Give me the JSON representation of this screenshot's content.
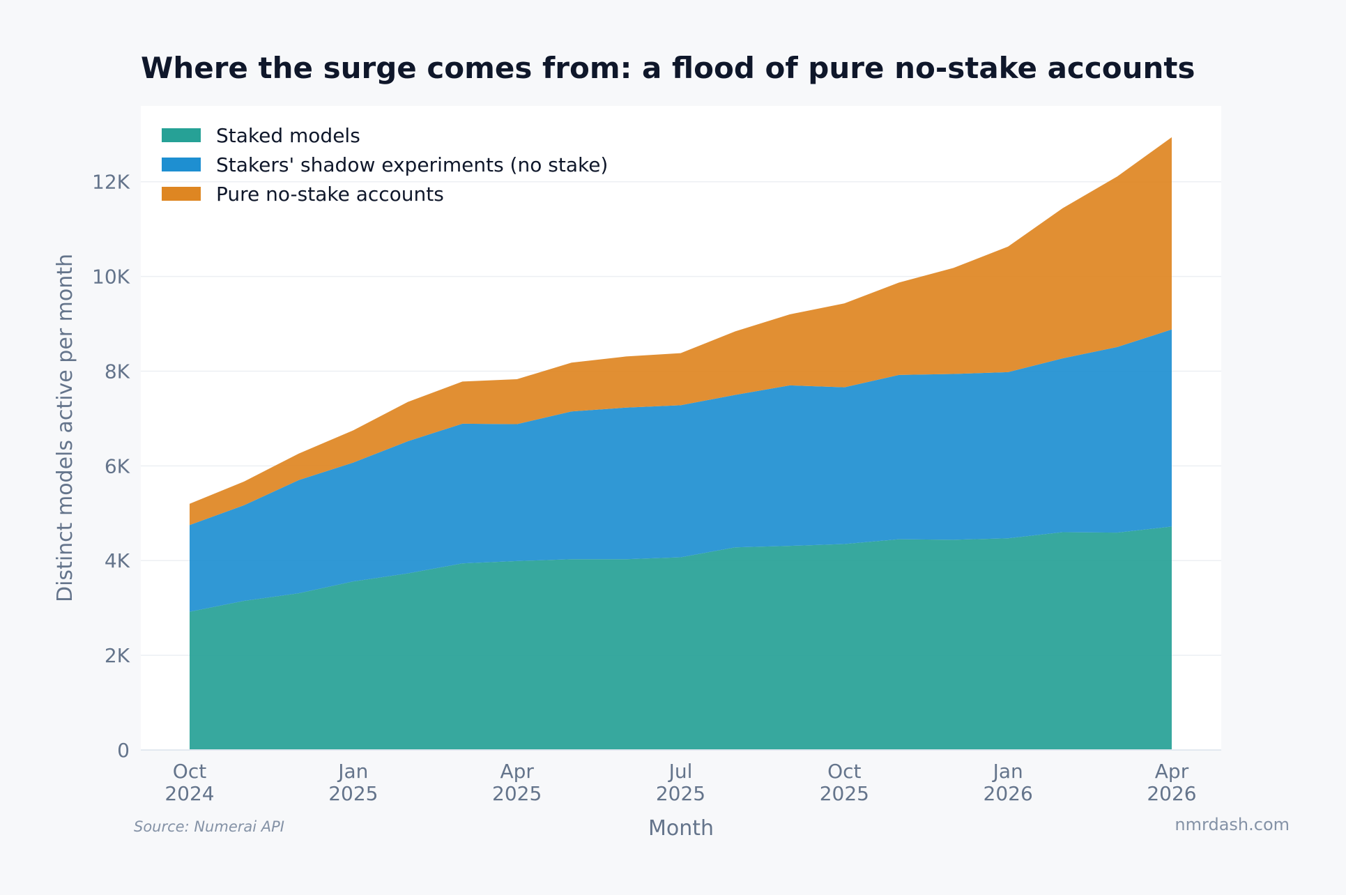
{
  "chart_data": {
    "type": "area",
    "stacked": true,
    "title": "Where the surge comes from: a flood of pure no-stake accounts",
    "xlabel": "Month",
    "ylabel": "Distinct models active per month",
    "x": [
      "2024-10",
      "2024-11",
      "2024-12",
      "2025-01",
      "2025-02",
      "2025-03",
      "2025-04",
      "2025-05",
      "2025-06",
      "2025-07",
      "2025-08",
      "2025-09",
      "2025-10",
      "2025-11",
      "2025-12",
      "2026-01",
      "2026-02",
      "2026-03",
      "2026-04"
    ],
    "x_ticks": [
      {
        "x": "2024-10",
        "line1": "Oct",
        "line2": "2024"
      },
      {
        "x": "2025-01",
        "line1": "Jan",
        "line2": "2025"
      },
      {
        "x": "2025-04",
        "line1": "Apr",
        "line2": "2025"
      },
      {
        "x": "2025-07",
        "line1": "Jul",
        "line2": "2025"
      },
      {
        "x": "2025-10",
        "line1": "Oct",
        "line2": "2025"
      },
      {
        "x": "2026-01",
        "line1": "Jan",
        "line2": "2026"
      },
      {
        "x": "2026-04",
        "line1": "Apr",
        "line2": "2026"
      }
    ],
    "y_ticks": [
      {
        "value": 0,
        "label": "0"
      },
      {
        "value": 2000,
        "label": "2K"
      },
      {
        "value": 4000,
        "label": "4K"
      },
      {
        "value": 6000,
        "label": "6K"
      },
      {
        "value": 8000,
        "label": "8K"
      },
      {
        "value": 10000,
        "label": "10K"
      },
      {
        "value": 12000,
        "label": "12K"
      }
    ],
    "ylim": [
      0,
      13600
    ],
    "grid": true,
    "legend_position": "top-left",
    "series": [
      {
        "name": "Staked models",
        "color": "#26a196",
        "values": [
          2920,
          3150,
          3310,
          3560,
          3730,
          3940,
          3990,
          4030,
          4030,
          4070,
          4280,
          4310,
          4350,
          4450,
          4440,
          4470,
          4600,
          4590,
          4720
        ]
      },
      {
        "name": "Stakers' shadow experiments (no stake)",
        "color": "#1e8fd1",
        "values": [
          1830,
          2020,
          2390,
          2510,
          2790,
          2950,
          2890,
          3120,
          3200,
          3210,
          3220,
          3390,
          3310,
          3470,
          3500,
          3510,
          3670,
          3920,
          4160
        ]
      },
      {
        "name": "Pure no-stake accounts",
        "color": "#de8622",
        "values": [
          450,
          500,
          560,
          680,
          830,
          890,
          950,
          1030,
          1080,
          1100,
          1340,
          1500,
          1770,
          1950,
          2240,
          2650,
          3170,
          3600,
          4060
        ]
      }
    ]
  },
  "footer": {
    "source": "Source: Numerai API",
    "brand": "nmrdash.com"
  }
}
